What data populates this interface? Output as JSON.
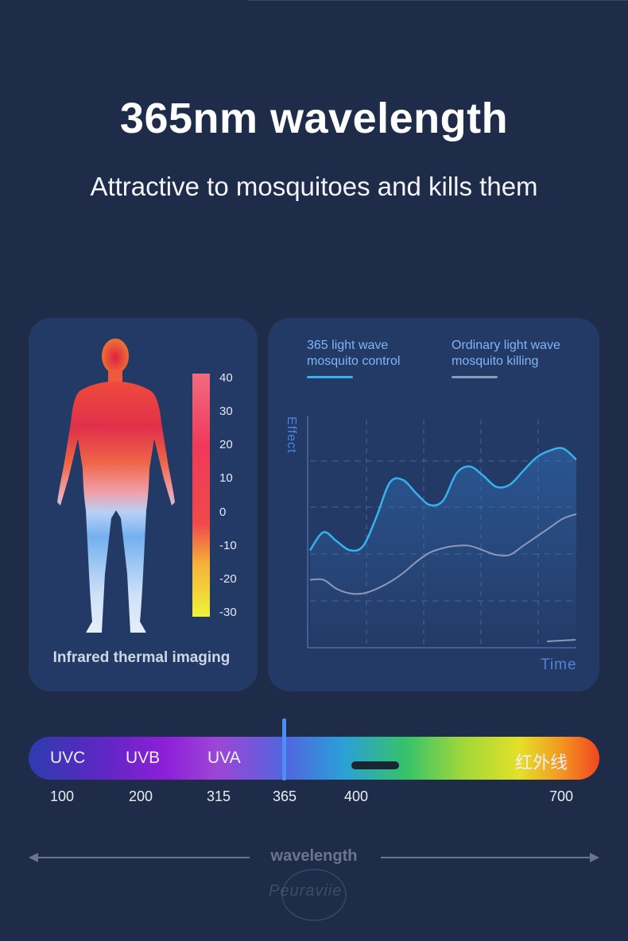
{
  "header": {
    "title": "365nm wavelength",
    "subtitle": "Attractive to mosquitoes and kills them"
  },
  "thermal_panel": {
    "caption": "Infrared thermal imaging",
    "scale_labels": [
      "40",
      "30",
      "20",
      "10",
      "0",
      "-10",
      "-20",
      "-30"
    ],
    "scale_colors": [
      "#f26b7e",
      "#ef3a5a",
      "#ef5a3a",
      "#f5c13a",
      "#eff23a"
    ]
  },
  "effect_chart": {
    "legend_uv_line1": "365 light wave",
    "legend_uv_line2": "mosquito control",
    "legend_ordinary_line1": "Ordinary light wave",
    "legend_ordinary_line2": "mosquito killing",
    "ylabel": "Effect",
    "xlabel": "Time",
    "uv_color": "#35b1ec",
    "ordinary_color": "#8c98b8"
  },
  "chart_data": {
    "type": "line",
    "title": "",
    "xlabel": "Time",
    "ylabel": "Effect",
    "x": [
      0,
      0.5,
      1,
      1.5,
      2,
      2.5,
      3,
      3.5,
      4,
      4.5,
      5,
      5.5,
      6,
      6.5,
      7,
      7.5,
      8,
      8.5,
      9,
      9.5,
      10
    ],
    "series": [
      {
        "name": "365 light wave mosquito control",
        "values": [
          4.3,
          5.1,
          4.7,
          4.3,
          4.5,
          5.8,
          7.3,
          7.4,
          6.8,
          6.3,
          6.5,
          7.7,
          8.0,
          7.6,
          7.1,
          7.2,
          7.8,
          8.4,
          8.7,
          8.8,
          8.3
        ]
      },
      {
        "name": "Ordinary light wave mosquito killing",
        "values": [
          3.0,
          3.0,
          2.6,
          2.4,
          2.4,
          2.6,
          2.9,
          3.3,
          3.8,
          4.2,
          4.4,
          4.5,
          4.5,
          4.3,
          4.1,
          4.1,
          4.5,
          4.9,
          5.3,
          5.7,
          5.9
        ]
      }
    ],
    "ylim": [
      0,
      10
    ],
    "grid": true
  },
  "spectrum": {
    "bands": [
      "UVC",
      "UVB",
      "UVA",
      "红外线"
    ],
    "ticks": [
      "100",
      "200",
      "315",
      "365",
      "400",
      "700"
    ],
    "marker_value": "365",
    "marker_color": "#4d8ef6"
  },
  "footer": {
    "axis_label": "wavelength",
    "watermark": "Peuraviie"
  }
}
